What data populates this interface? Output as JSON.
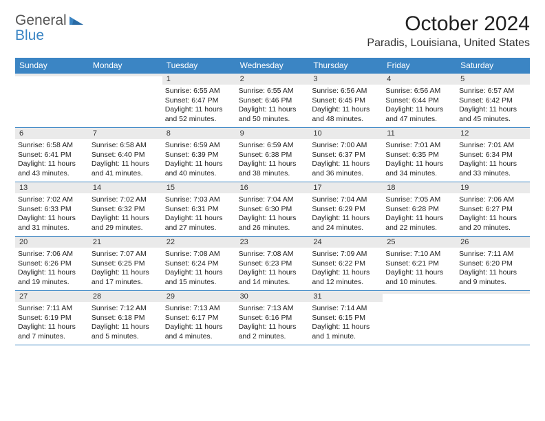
{
  "brand": {
    "general": "General",
    "blue": "Blue"
  },
  "title": "October 2024",
  "location": "Paradis, Louisiana, United States",
  "colors": {
    "header_bg": "#3b85c4",
    "header_text": "#ffffff",
    "daynum_bg": "#eaeaea",
    "border": "#3b85c4",
    "text": "#222222",
    "logo_gray": "#555555",
    "logo_blue": "#3b85c4",
    "page_bg": "#ffffff"
  },
  "day_names": [
    "Sunday",
    "Monday",
    "Tuesday",
    "Wednesday",
    "Thursday",
    "Friday",
    "Saturday"
  ],
  "weeks": [
    [
      {
        "num": "",
        "sunrise": "",
        "sunset": "",
        "daylight": ""
      },
      {
        "num": "",
        "sunrise": "",
        "sunset": "",
        "daylight": ""
      },
      {
        "num": "1",
        "sunrise": "Sunrise: 6:55 AM",
        "sunset": "Sunset: 6:47 PM",
        "daylight": "Daylight: 11 hours and 52 minutes."
      },
      {
        "num": "2",
        "sunrise": "Sunrise: 6:55 AM",
        "sunset": "Sunset: 6:46 PM",
        "daylight": "Daylight: 11 hours and 50 minutes."
      },
      {
        "num": "3",
        "sunrise": "Sunrise: 6:56 AM",
        "sunset": "Sunset: 6:45 PM",
        "daylight": "Daylight: 11 hours and 48 minutes."
      },
      {
        "num": "4",
        "sunrise": "Sunrise: 6:56 AM",
        "sunset": "Sunset: 6:44 PM",
        "daylight": "Daylight: 11 hours and 47 minutes."
      },
      {
        "num": "5",
        "sunrise": "Sunrise: 6:57 AM",
        "sunset": "Sunset: 6:42 PM",
        "daylight": "Daylight: 11 hours and 45 minutes."
      }
    ],
    [
      {
        "num": "6",
        "sunrise": "Sunrise: 6:58 AM",
        "sunset": "Sunset: 6:41 PM",
        "daylight": "Daylight: 11 hours and 43 minutes."
      },
      {
        "num": "7",
        "sunrise": "Sunrise: 6:58 AM",
        "sunset": "Sunset: 6:40 PM",
        "daylight": "Daylight: 11 hours and 41 minutes."
      },
      {
        "num": "8",
        "sunrise": "Sunrise: 6:59 AM",
        "sunset": "Sunset: 6:39 PM",
        "daylight": "Daylight: 11 hours and 40 minutes."
      },
      {
        "num": "9",
        "sunrise": "Sunrise: 6:59 AM",
        "sunset": "Sunset: 6:38 PM",
        "daylight": "Daylight: 11 hours and 38 minutes."
      },
      {
        "num": "10",
        "sunrise": "Sunrise: 7:00 AM",
        "sunset": "Sunset: 6:37 PM",
        "daylight": "Daylight: 11 hours and 36 minutes."
      },
      {
        "num": "11",
        "sunrise": "Sunrise: 7:01 AM",
        "sunset": "Sunset: 6:35 PM",
        "daylight": "Daylight: 11 hours and 34 minutes."
      },
      {
        "num": "12",
        "sunrise": "Sunrise: 7:01 AM",
        "sunset": "Sunset: 6:34 PM",
        "daylight": "Daylight: 11 hours and 33 minutes."
      }
    ],
    [
      {
        "num": "13",
        "sunrise": "Sunrise: 7:02 AM",
        "sunset": "Sunset: 6:33 PM",
        "daylight": "Daylight: 11 hours and 31 minutes."
      },
      {
        "num": "14",
        "sunrise": "Sunrise: 7:02 AM",
        "sunset": "Sunset: 6:32 PM",
        "daylight": "Daylight: 11 hours and 29 minutes."
      },
      {
        "num": "15",
        "sunrise": "Sunrise: 7:03 AM",
        "sunset": "Sunset: 6:31 PM",
        "daylight": "Daylight: 11 hours and 27 minutes."
      },
      {
        "num": "16",
        "sunrise": "Sunrise: 7:04 AM",
        "sunset": "Sunset: 6:30 PM",
        "daylight": "Daylight: 11 hours and 26 minutes."
      },
      {
        "num": "17",
        "sunrise": "Sunrise: 7:04 AM",
        "sunset": "Sunset: 6:29 PM",
        "daylight": "Daylight: 11 hours and 24 minutes."
      },
      {
        "num": "18",
        "sunrise": "Sunrise: 7:05 AM",
        "sunset": "Sunset: 6:28 PM",
        "daylight": "Daylight: 11 hours and 22 minutes."
      },
      {
        "num": "19",
        "sunrise": "Sunrise: 7:06 AM",
        "sunset": "Sunset: 6:27 PM",
        "daylight": "Daylight: 11 hours and 20 minutes."
      }
    ],
    [
      {
        "num": "20",
        "sunrise": "Sunrise: 7:06 AM",
        "sunset": "Sunset: 6:26 PM",
        "daylight": "Daylight: 11 hours and 19 minutes."
      },
      {
        "num": "21",
        "sunrise": "Sunrise: 7:07 AM",
        "sunset": "Sunset: 6:25 PM",
        "daylight": "Daylight: 11 hours and 17 minutes."
      },
      {
        "num": "22",
        "sunrise": "Sunrise: 7:08 AM",
        "sunset": "Sunset: 6:24 PM",
        "daylight": "Daylight: 11 hours and 15 minutes."
      },
      {
        "num": "23",
        "sunrise": "Sunrise: 7:08 AM",
        "sunset": "Sunset: 6:23 PM",
        "daylight": "Daylight: 11 hours and 14 minutes."
      },
      {
        "num": "24",
        "sunrise": "Sunrise: 7:09 AM",
        "sunset": "Sunset: 6:22 PM",
        "daylight": "Daylight: 11 hours and 12 minutes."
      },
      {
        "num": "25",
        "sunrise": "Sunrise: 7:10 AM",
        "sunset": "Sunset: 6:21 PM",
        "daylight": "Daylight: 11 hours and 10 minutes."
      },
      {
        "num": "26",
        "sunrise": "Sunrise: 7:11 AM",
        "sunset": "Sunset: 6:20 PM",
        "daylight": "Daylight: 11 hours and 9 minutes."
      }
    ],
    [
      {
        "num": "27",
        "sunrise": "Sunrise: 7:11 AM",
        "sunset": "Sunset: 6:19 PM",
        "daylight": "Daylight: 11 hours and 7 minutes."
      },
      {
        "num": "28",
        "sunrise": "Sunrise: 7:12 AM",
        "sunset": "Sunset: 6:18 PM",
        "daylight": "Daylight: 11 hours and 5 minutes."
      },
      {
        "num": "29",
        "sunrise": "Sunrise: 7:13 AM",
        "sunset": "Sunset: 6:17 PM",
        "daylight": "Daylight: 11 hours and 4 minutes."
      },
      {
        "num": "30",
        "sunrise": "Sunrise: 7:13 AM",
        "sunset": "Sunset: 6:16 PM",
        "daylight": "Daylight: 11 hours and 2 minutes."
      },
      {
        "num": "31",
        "sunrise": "Sunrise: 7:14 AM",
        "sunset": "Sunset: 6:15 PM",
        "daylight": "Daylight: 11 hours and 1 minute."
      },
      {
        "num": "",
        "sunrise": "",
        "sunset": "",
        "daylight": ""
      },
      {
        "num": "",
        "sunrise": "",
        "sunset": "",
        "daylight": ""
      }
    ]
  ]
}
